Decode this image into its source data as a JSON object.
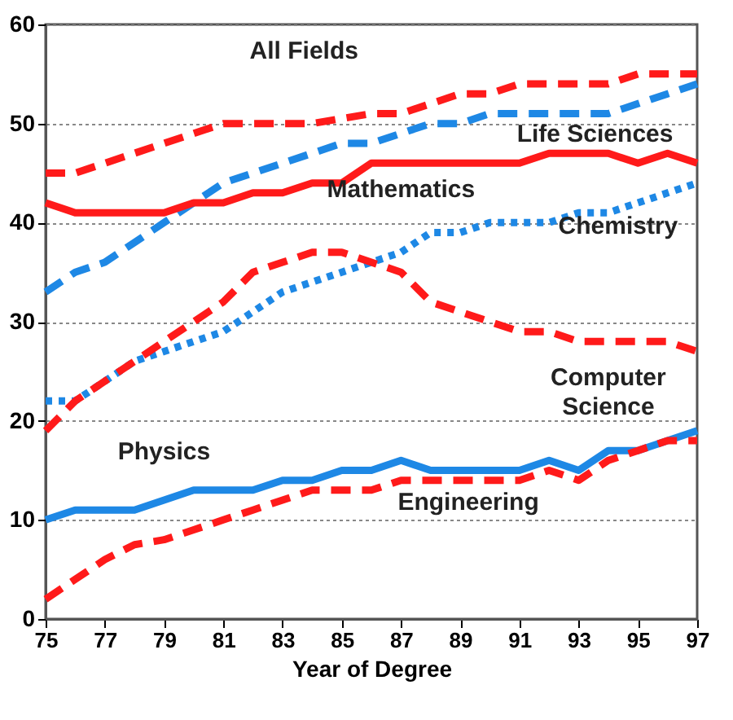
{
  "chart_data": {
    "type": "line",
    "xlabel": "Year of Degree",
    "x": [
      75,
      76,
      77,
      78,
      79,
      80,
      81,
      82,
      83,
      84,
      85,
      86,
      87,
      88,
      89,
      90,
      91,
      92,
      93,
      94,
      95,
      96,
      97
    ],
    "xlim": [
      75,
      97
    ],
    "xticks": [
      75,
      77,
      79,
      81,
      83,
      85,
      87,
      89,
      91,
      93,
      95,
      97
    ],
    "ylim": [
      0,
      60
    ],
    "yticks": [
      0,
      10,
      20,
      30,
      40,
      50,
      60
    ],
    "grid": "y",
    "marker": "none",
    "series": [
      {
        "name": "All Fields",
        "color": "#ff1a1a",
        "line_style": "dashed",
        "values": [
          45,
          45,
          46,
          47,
          48,
          49,
          50,
          50,
          50,
          50,
          50.5,
          51,
          51,
          52,
          53,
          53,
          54,
          54,
          54,
          54,
          55,
          55,
          55
        ]
      },
      {
        "name": "Life Sciences",
        "color": "#1e88e5",
        "line_style": "dashed",
        "values": [
          33,
          35,
          36,
          38,
          40,
          42,
          44,
          45,
          46,
          47,
          48,
          48,
          49,
          50,
          50,
          51,
          51,
          51,
          51,
          51,
          52,
          53,
          54
        ]
      },
      {
        "name": "Mathematics",
        "color": "#ff1a1a",
        "line_style": "solid",
        "values": [
          42,
          41,
          41,
          41,
          41,
          42,
          42,
          43,
          43,
          44,
          44,
          46,
          46,
          46,
          46,
          46,
          46,
          47,
          47,
          47,
          46,
          47,
          46
        ]
      },
      {
        "name": "Chemistry",
        "color": "#1e88e5",
        "line_style": "dotted",
        "values": [
          22,
          22,
          24,
          26,
          27,
          28,
          29,
          31,
          33,
          34,
          35,
          36,
          37,
          39,
          39,
          40,
          40,
          40,
          41,
          41,
          42,
          43,
          44
        ]
      },
      {
        "name": "Computer Science",
        "color": "#ff1a1a",
        "line_style": "dashed",
        "values": [
          19,
          22,
          24,
          26,
          28,
          30,
          32,
          35,
          36,
          37,
          37,
          36,
          35,
          32,
          31,
          30,
          29,
          29,
          28,
          28,
          28,
          28,
          27
        ]
      },
      {
        "name": "Physics",
        "color": "#1e88e5",
        "line_style": "solid",
        "values": [
          10,
          11,
          11,
          11,
          12,
          13,
          13,
          13,
          14,
          14,
          15,
          15,
          16,
          15,
          15,
          15,
          15,
          16,
          15,
          17,
          17,
          18,
          19
        ]
      },
      {
        "name": "Engineering",
        "color": "#ff1a1a",
        "line_style": "dashed",
        "values": [
          2,
          4,
          6,
          7.5,
          8,
          9,
          10,
          11,
          12,
          13,
          13,
          13,
          14,
          14,
          14,
          14,
          14,
          15,
          14,
          16,
          17,
          18,
          18
        ]
      }
    ]
  }
}
